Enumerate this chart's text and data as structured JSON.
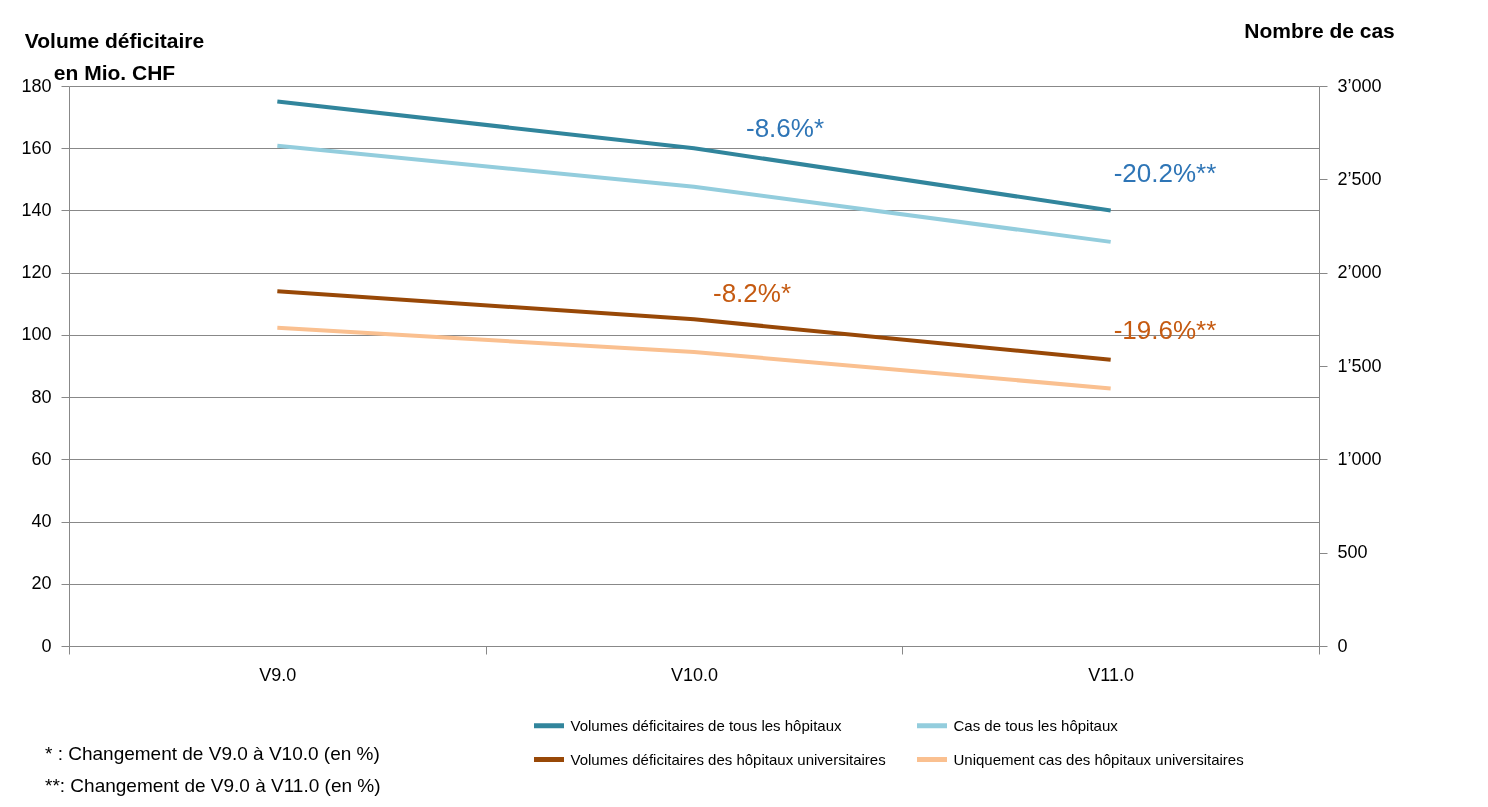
{
  "chart_data": {
    "type": "line",
    "ylabel": "Volume déficitaire\nen Mio. CHF",
    "y2label": "Nombre de cas",
    "categories": [
      "V9.0",
      "V10.0",
      "V11.0"
    ],
    "series": [
      {
        "name": "Volumes déficitaires de tous les hôpitaux",
        "color": "#31859c",
        "values": [
          175,
          160,
          140
        ]
      },
      {
        "name": "Volumes déficitaires des hôpitaux universitaires",
        "color": "#984807",
        "values": [
          114,
          105,
          92
        ]
      },
      {
        "name": "Cas de tous les hôpitaux",
        "color": "#93cddd",
        "values": [
          2680,
          2460,
          2165
        ],
        "axis": "y2"
      },
      {
        "name": "Uniquement cas des hôpitaux universitaires",
        "color": "#fac090",
        "values": [
          1705,
          1575,
          1380
        ],
        "axis": "y2"
      }
    ],
    "ylim": [
      0,
      180
    ],
    "yticks": [
      0,
      20,
      40,
      60,
      80,
      100,
      120,
      140,
      160,
      180
    ],
    "y2lim": [
      0,
      3000
    ],
    "y2ticks": [
      0,
      500,
      {
        "value": 1000,
        "label": "1’000"
      },
      {
        "value": 1500,
        "label": "1’500"
      },
      {
        "value": 2000,
        "label": "2’000"
      },
      {
        "value": 2500,
        "label": "2’500"
      },
      {
        "value": 3000,
        "label": "3’000"
      }
    ],
    "grid": "y",
    "legend": "bottom",
    "annotations": [
      "-8.6%*",
      "-20.2%**",
      "-8.2%*",
      "-19.6%**",
      "*  : Changement de V9.0 à V10.0 (en %)",
      "**: Changement de V9.0 à V11.0 (en %)"
    ]
  }
}
